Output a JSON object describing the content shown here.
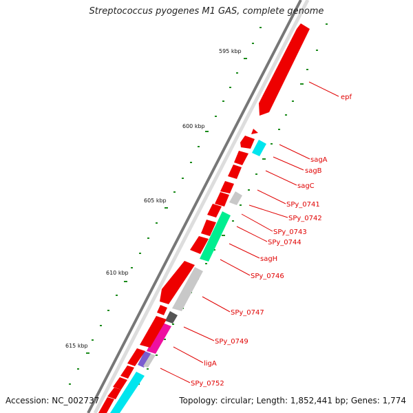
{
  "title": "Streptococcus pyogenes M1 GAS, complete genome",
  "footer": {
    "accession": "Accession: NC_002737",
    "summary": "Topology: circular; Length: 1,852,441 bp; Genes: 1,774"
  },
  "colors": {
    "background": "#ffffff",
    "backbone": "#777777",
    "label": "#e00000",
    "tick": "#1a8a1a",
    "red": "#ee0000",
    "cyan": "#00e5ee",
    "gray": "#c8c8c8",
    "darkgray": "#555555",
    "green": "#00ee90",
    "magenta": "#ee10a0",
    "purple": "#7a5cd0"
  },
  "scale_labels": [
    "595 kbp",
    "600 kbp",
    "605 kbp",
    "610 kbp",
    "615 kbp"
  ],
  "gene_labels": [
    "epf",
    "sagA",
    "sagB",
    "sagC",
    "SPy_0741",
    "SPy_0742",
    "SPy_0743",
    "SPy_0744",
    "sagH",
    "SPy_0746",
    "SPy_0747",
    "SPy_0749",
    "ligA",
    "SPy_0752"
  ]
}
